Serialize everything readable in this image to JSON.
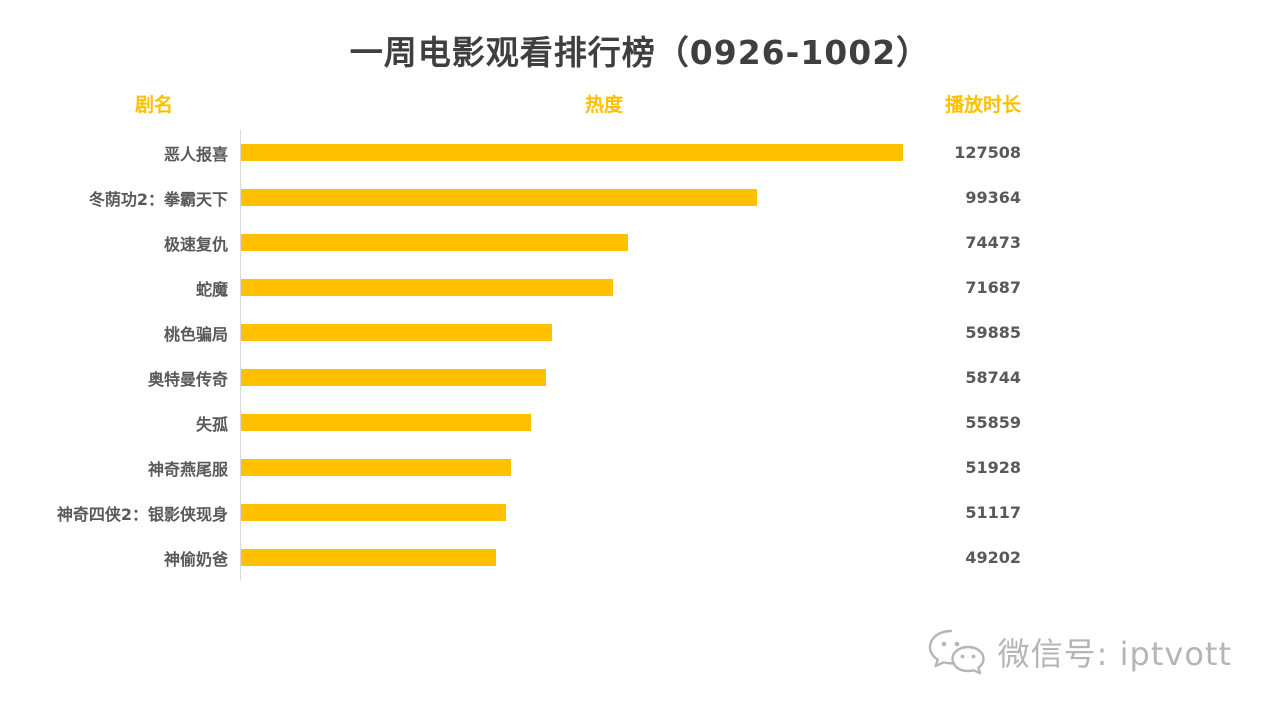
{
  "title": "一周电影观看排行榜（0926-1002）",
  "headers": {
    "name": "剧名",
    "heat": "热度",
    "duration": "播放时长"
  },
  "chart_data": {
    "type": "bar",
    "orientation": "horizontal",
    "title": "一周电影观看排行榜（0926-1002）",
    "xlabel": "热度",
    "ylabel": "剧名",
    "value_label": "播放时长",
    "xlim": [
      0,
      127508
    ],
    "grid": false,
    "legend": "none",
    "categories": [
      "恶人报喜",
      "冬荫功2：拳霸天下",
      "极速复仇",
      "蛇魔",
      "桃色骗局",
      "奥特曼传奇",
      "失孤",
      "神奇燕尾服",
      "神奇四侠2：银影侠现身",
      "神偷奶爸"
    ],
    "values": [
      127508,
      99364,
      74473,
      71687,
      59885,
      58744,
      55859,
      51928,
      51117,
      49202
    ]
  },
  "footer": {
    "wechat_label": "微信号: iptvott"
  },
  "colors": {
    "accent": "#FFC000",
    "text": "#595959",
    "title": "#3f3f3f",
    "muted": "#b5b5b5",
    "axis": "#d9d9d9"
  }
}
